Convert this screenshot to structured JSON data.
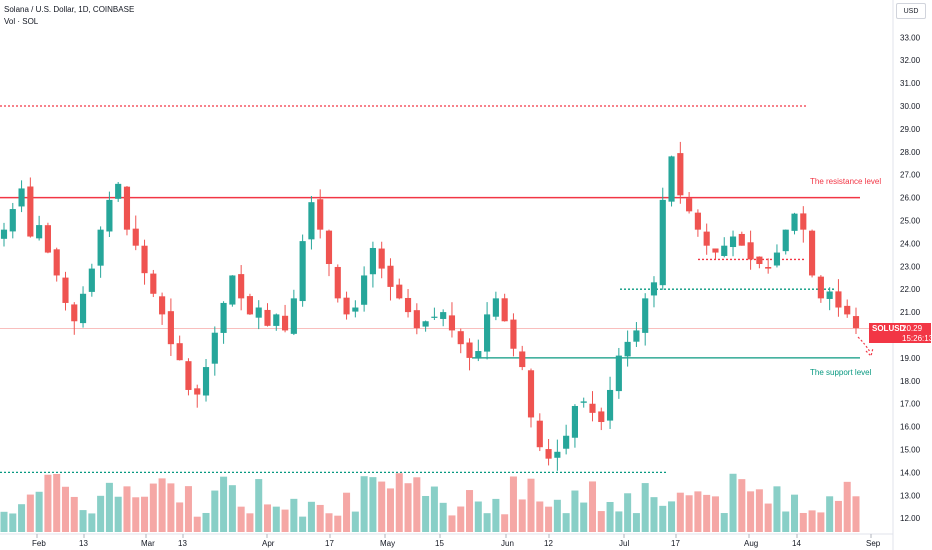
{
  "header": {
    "title": "Solana / U.S. Dollar, 1D, COINBASE",
    "volume_label": "Vol · SOL"
  },
  "currency_button": "USD",
  "annotations": {
    "resistance": "The resistance level",
    "support": "The support level"
  },
  "price_label": {
    "symbol": "SOLUSD",
    "price": "20.29",
    "countdown": "15:26:13"
  },
  "colors": {
    "up": "#26a69a",
    "down": "#ef5350",
    "up_volume": "#89cfc7",
    "down_volume": "#f5a7a5",
    "resistance": "#f23645",
    "support": "#089981",
    "price_tag": "#f23645"
  },
  "chart_data": {
    "type": "candlestick",
    "title": "Solana / U.S. Dollar, 1D, COINBASE",
    "y_axis_ticks": [
      "12.00",
      "13.00",
      "14.00",
      "15.00",
      "16.00",
      "17.00",
      "18.00",
      "19.00",
      "20.00",
      "21.00",
      "22.00",
      "23.00",
      "24.00",
      "25.00",
      "26.00",
      "27.00",
      "28.00",
      "29.00",
      "30.00",
      "31.00",
      "32.00",
      "33.00"
    ],
    "x_axis_ticks": [
      "Feb",
      "13",
      "Mar",
      "13",
      "Apr",
      "17",
      "May",
      "15",
      "Jun",
      "12",
      "Jul",
      "17",
      "Aug",
      "14",
      "Sep"
    ],
    "ylim": [
      11.3,
      33.6
    ],
    "last_price": 20.29,
    "levels": [
      {
        "label": "The resistance level",
        "value": 26.0,
        "style": "solid"
      },
      {
        "label": "The support level",
        "value": 19.0,
        "style": "solid"
      },
      {
        "value": 30.0,
        "style": "dotted"
      },
      {
        "value": 22.0,
        "style": "dotted"
      },
      {
        "value": 23.3,
        "style": "dotted"
      },
      {
        "value": 14.0,
        "style": "dotted"
      }
    ],
    "price_path": [
      24.6,
      25.5,
      26.4,
      24.3,
      24.8,
      23.6,
      22.6,
      21.4,
      20.6,
      21.8,
      22.9,
      24.6,
      25.9,
      26.6,
      24.6,
      23.9,
      22.7,
      21.8,
      20.9,
      19.6,
      18.9,
      17.6,
      17.4,
      18.6,
      20.1,
      21.4,
      22.6,
      21.6,
      20.9,
      21.2,
      20.4,
      20.9,
      20.2,
      21.6,
      24.1,
      25.8,
      24.6,
      23.1,
      21.6,
      20.9,
      21.2,
      22.6,
      23.8,
      22.9,
      22.1,
      21.6,
      21.0,
      20.3,
      20.6,
      20.8,
      21.0,
      20.2,
      19.6,
      19.0,
      19.3,
      20.9,
      21.6,
      20.6,
      19.4,
      18.6,
      16.4,
      15.1,
      14.6,
      14.9,
      15.6,
      16.9,
      17.1,
      16.6,
      16.2,
      17.6,
      19.1,
      19.7,
      20.2,
      21.6,
      22.3,
      25.9,
      27.8,
      26.1,
      25.4,
      24.6,
      23.9,
      23.6,
      23.9,
      24.3,
      23.9,
      23.3,
      23.1,
      22.9,
      23.6,
      24.6,
      25.3,
      24.6,
      22.6,
      21.6,
      21.9,
      21.2,
      20.9,
      20.3
    ],
    "volume_range": {
      "bottom_label": "12.00",
      "values_relative": true
    }
  }
}
